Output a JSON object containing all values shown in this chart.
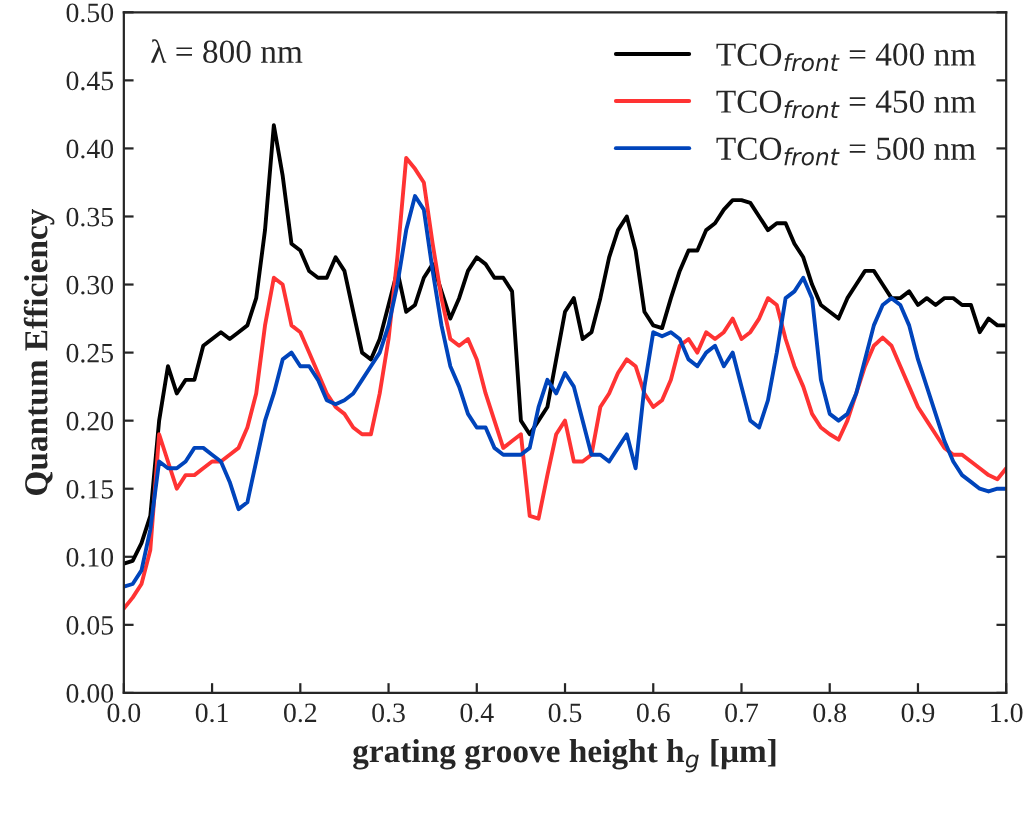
{
  "chart_data": {
    "type": "line",
    "xlabel": "grating groove height h$_{g}$ [μm]",
    "ylabel": "Quantum Efficiency",
    "annotations": [
      "λ = 800 nm"
    ],
    "x": [
      0.0,
      0.01,
      0.02,
      0.03,
      0.04,
      0.05,
      0.06,
      0.07,
      0.08,
      0.09,
      0.1,
      0.11,
      0.12,
      0.13,
      0.14,
      0.15,
      0.16,
      0.17,
      0.18,
      0.19,
      0.2,
      0.21,
      0.22,
      0.23,
      0.24,
      0.25,
      0.26,
      0.27,
      0.28,
      0.29,
      0.3,
      0.31,
      0.32,
      0.33,
      0.34,
      0.35,
      0.36,
      0.37,
      0.38,
      0.39,
      0.4,
      0.41,
      0.42,
      0.43,
      0.44,
      0.45,
      0.46,
      0.47,
      0.48,
      0.49,
      0.5,
      0.51,
      0.52,
      0.53,
      0.54,
      0.55,
      0.56,
      0.57,
      0.58,
      0.59,
      0.6,
      0.61,
      0.62,
      0.63,
      0.64,
      0.65,
      0.66,
      0.67,
      0.68,
      0.69,
      0.7,
      0.71,
      0.72,
      0.73,
      0.74,
      0.75,
      0.76,
      0.77,
      0.78,
      0.79,
      0.8,
      0.81,
      0.82,
      0.83,
      0.84,
      0.85,
      0.86,
      0.87,
      0.88,
      0.89,
      0.9,
      0.91,
      0.92,
      0.93,
      0.94,
      0.95,
      0.96,
      0.97,
      0.98,
      0.99,
      1.0
    ],
    "series": [
      {
        "name": "TCO$_{front}$ = 400 nm",
        "color": "#000000",
        "values": [
          0.095,
          0.097,
          0.11,
          0.13,
          0.2,
          0.24,
          0.22,
          0.23,
          0.23,
          0.255,
          0.26,
          0.265,
          0.26,
          0.265,
          0.27,
          0.29,
          0.34,
          0.417,
          0.38,
          0.33,
          0.325,
          0.31,
          0.305,
          0.305,
          0.32,
          0.31,
          0.28,
          0.25,
          0.245,
          0.26,
          0.285,
          0.31,
          0.28,
          0.285,
          0.305,
          0.315,
          0.295,
          0.275,
          0.29,
          0.31,
          0.32,
          0.315,
          0.305,
          0.305,
          0.295,
          0.2,
          0.19,
          0.2,
          0.21,
          0.245,
          0.28,
          0.29,
          0.26,
          0.265,
          0.29,
          0.32,
          0.34,
          0.35,
          0.325,
          0.28,
          0.27,
          0.268,
          0.29,
          0.31,
          0.325,
          0.325,
          0.34,
          0.345,
          0.355,
          0.362,
          0.362,
          0.36,
          0.35,
          0.34,
          0.345,
          0.345,
          0.33,
          0.32,
          0.3,
          0.285,
          0.28,
          0.275,
          0.29,
          0.3,
          0.31,
          0.31,
          0.3,
          0.29,
          0.29,
          0.295,
          0.285,
          0.29,
          0.285,
          0.29,
          0.29,
          0.285,
          0.285,
          0.265,
          0.275,
          0.27,
          0.27
        ]
      },
      {
        "name": "TCO$_{front}$ = 450 nm",
        "color": "#ff3333",
        "values": [
          0.062,
          0.07,
          0.08,
          0.105,
          0.19,
          0.17,
          0.15,
          0.16,
          0.16,
          0.165,
          0.17,
          0.17,
          0.175,
          0.18,
          0.195,
          0.22,
          0.27,
          0.305,
          0.3,
          0.27,
          0.265,
          0.25,
          0.235,
          0.22,
          0.21,
          0.205,
          0.195,
          0.19,
          0.19,
          0.22,
          0.26,
          0.32,
          0.393,
          0.385,
          0.375,
          0.33,
          0.29,
          0.26,
          0.255,
          0.26,
          0.245,
          0.22,
          0.2,
          0.18,
          0.185,
          0.19,
          0.13,
          0.128,
          0.16,
          0.19,
          0.2,
          0.17,
          0.17,
          0.175,
          0.21,
          0.22,
          0.235,
          0.245,
          0.24,
          0.22,
          0.21,
          0.215,
          0.23,
          0.255,
          0.26,
          0.25,
          0.265,
          0.26,
          0.265,
          0.275,
          0.26,
          0.265,
          0.275,
          0.29,
          0.285,
          0.26,
          0.24,
          0.225,
          0.205,
          0.195,
          0.19,
          0.186,
          0.2,
          0.22,
          0.24,
          0.255,
          0.261,
          0.255,
          0.24,
          0.225,
          0.21,
          0.2,
          0.19,
          0.18,
          0.175,
          0.175,
          0.17,
          0.165,
          0.16,
          0.157,
          0.165
        ]
      },
      {
        "name": "TCO$_{front}$ = 500 nm",
        "color": "#0044bb",
        "values": [
          0.078,
          0.08,
          0.09,
          0.12,
          0.17,
          0.165,
          0.165,
          0.17,
          0.18,
          0.18,
          0.175,
          0.17,
          0.155,
          0.135,
          0.14,
          0.17,
          0.2,
          0.22,
          0.245,
          0.25,
          0.24,
          0.24,
          0.23,
          0.215,
          0.212,
          0.215,
          0.22,
          0.23,
          0.24,
          0.25,
          0.27,
          0.3,
          0.34,
          0.365,
          0.355,
          0.31,
          0.27,
          0.24,
          0.225,
          0.205,
          0.195,
          0.195,
          0.18,
          0.175,
          0.175,
          0.175,
          0.18,
          0.21,
          0.23,
          0.22,
          0.235,
          0.225,
          0.2,
          0.175,
          0.175,
          0.17,
          0.18,
          0.19,
          0.165,
          0.225,
          0.265,
          0.262,
          0.265,
          0.26,
          0.245,
          0.24,
          0.25,
          0.255,
          0.24,
          0.25,
          0.225,
          0.2,
          0.195,
          0.215,
          0.25,
          0.29,
          0.295,
          0.305,
          0.29,
          0.23,
          0.205,
          0.2,
          0.205,
          0.22,
          0.245,
          0.27,
          0.285,
          0.29,
          0.285,
          0.27,
          0.245,
          0.225,
          0.205,
          0.185,
          0.17,
          0.16,
          0.155,
          0.15,
          0.148,
          0.15,
          0.15
        ]
      }
    ],
    "xlim": [
      0.0,
      1.0
    ],
    "xticks": [
      {
        "value": 0.0,
        "label": "0.0"
      },
      0.1,
      0.2,
      0.3,
      0.4,
      0.5,
      0.6,
      0.7,
      0.8,
      0.9,
      {
        "value": 1.0,
        "label": "1.0"
      }
    ],
    "ylim": [
      0.0,
      0.5
    ],
    "yticks": [
      {
        "value": 0.0,
        "label": "0.00"
      },
      {
        "value": 0.05,
        "label": "0.05"
      },
      {
        "value": 0.1,
        "label": "0.10"
      },
      {
        "value": 0.15,
        "label": "0.15"
      },
      {
        "value": 0.2,
        "label": "0.20"
      },
      {
        "value": 0.25,
        "label": "0.25"
      },
      {
        "value": 0.3,
        "label": "0.30"
      },
      {
        "value": 0.35,
        "label": "0.35"
      },
      {
        "value": 0.4,
        "label": "0.40"
      },
      {
        "value": 0.45,
        "label": "0.45"
      },
      {
        "value": 0.5,
        "label": "0.50"
      }
    ],
    "grid": false,
    "legend": "top right",
    "line_style": "solid",
    "marker": "none"
  }
}
